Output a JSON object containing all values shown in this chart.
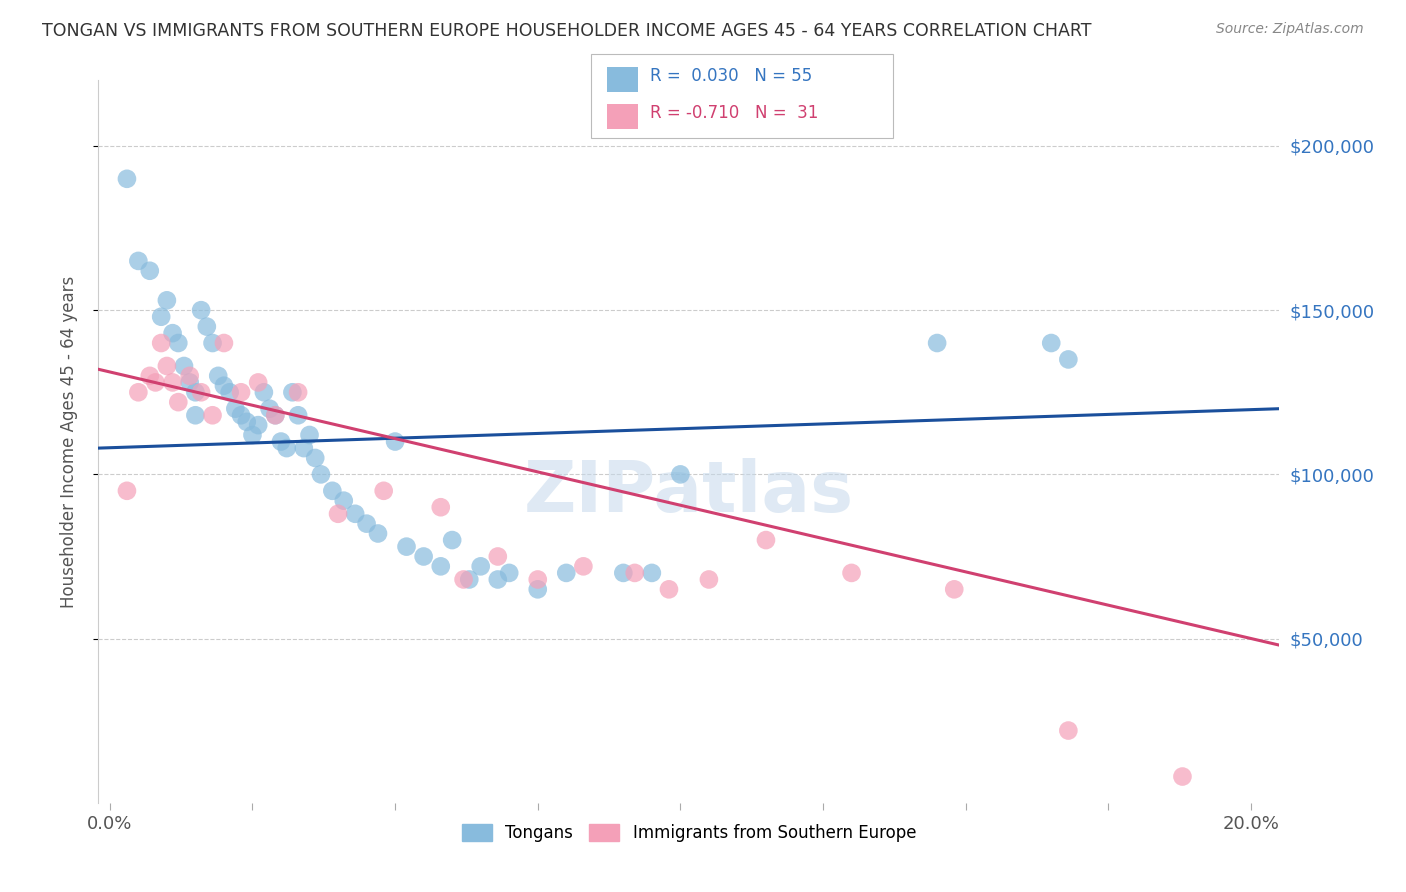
{
  "title": "TONGAN VS IMMIGRANTS FROM SOUTHERN EUROPE HOUSEHOLDER INCOME AGES 45 - 64 YEARS CORRELATION CHART",
  "source": "Source: ZipAtlas.com",
  "ylabel": "Householder Income Ages 45 - 64 years",
  "ylabel_ticks": [
    "$50,000",
    "$100,000",
    "$150,000",
    "$200,000"
  ],
  "ylabel_vals": [
    50000,
    100000,
    150000,
    200000
  ],
  "ylim": [
    0,
    220000
  ],
  "xlim": [
    -0.002,
    0.205
  ],
  "xmin_label": "0.0%",
  "xmax_label": "20.0%",
  "legend_blue_label": "Tongans",
  "legend_pink_label": "Immigrants from Southern Europe",
  "watermark": "ZIPatlas",
  "blue_color": "#88bbdd",
  "pink_color": "#f4a0b8",
  "line_blue": "#1a4f9c",
  "line_pink": "#d04070",
  "title_color": "#333333",
  "right_label_color": "#3575c0",
  "source_color": "#888888",
  "grid_color": "#cccccc",
  "blue_line_y0": 108000,
  "blue_line_y1": 120000,
  "pink_line_y0": 132000,
  "pink_line_y1": 48000,
  "tongans_x": [
    0.003,
    0.005,
    0.007,
    0.009,
    0.01,
    0.011,
    0.012,
    0.013,
    0.014,
    0.015,
    0.015,
    0.016,
    0.017,
    0.018,
    0.019,
    0.02,
    0.021,
    0.022,
    0.023,
    0.024,
    0.025,
    0.026,
    0.027,
    0.028,
    0.029,
    0.03,
    0.031,
    0.032,
    0.033,
    0.034,
    0.035,
    0.036,
    0.037,
    0.039,
    0.041,
    0.043,
    0.045,
    0.047,
    0.05,
    0.052,
    0.055,
    0.058,
    0.06,
    0.063,
    0.065,
    0.068,
    0.07,
    0.075,
    0.08,
    0.09,
    0.095,
    0.1,
    0.145,
    0.165,
    0.168
  ],
  "tongans_y": [
    190000,
    165000,
    162000,
    148000,
    153000,
    143000,
    140000,
    133000,
    128000,
    125000,
    118000,
    150000,
    145000,
    140000,
    130000,
    127000,
    125000,
    120000,
    118000,
    116000,
    112000,
    115000,
    125000,
    120000,
    118000,
    110000,
    108000,
    125000,
    118000,
    108000,
    112000,
    105000,
    100000,
    95000,
    92000,
    88000,
    85000,
    82000,
    110000,
    78000,
    75000,
    72000,
    80000,
    68000,
    72000,
    68000,
    70000,
    65000,
    70000,
    70000,
    70000,
    100000,
    140000,
    140000,
    135000
  ],
  "southern_europe_x": [
    0.003,
    0.005,
    0.007,
    0.008,
    0.009,
    0.01,
    0.011,
    0.012,
    0.014,
    0.016,
    0.018,
    0.02,
    0.023,
    0.026,
    0.029,
    0.033,
    0.04,
    0.048,
    0.058,
    0.062,
    0.068,
    0.075,
    0.083,
    0.092,
    0.098,
    0.105,
    0.115,
    0.13,
    0.148,
    0.168,
    0.188
  ],
  "southern_europe_y": [
    95000,
    125000,
    130000,
    128000,
    140000,
    133000,
    128000,
    122000,
    130000,
    125000,
    118000,
    140000,
    125000,
    128000,
    118000,
    125000,
    88000,
    95000,
    90000,
    68000,
    75000,
    68000,
    72000,
    70000,
    65000,
    68000,
    80000,
    70000,
    65000,
    22000,
    8000
  ]
}
